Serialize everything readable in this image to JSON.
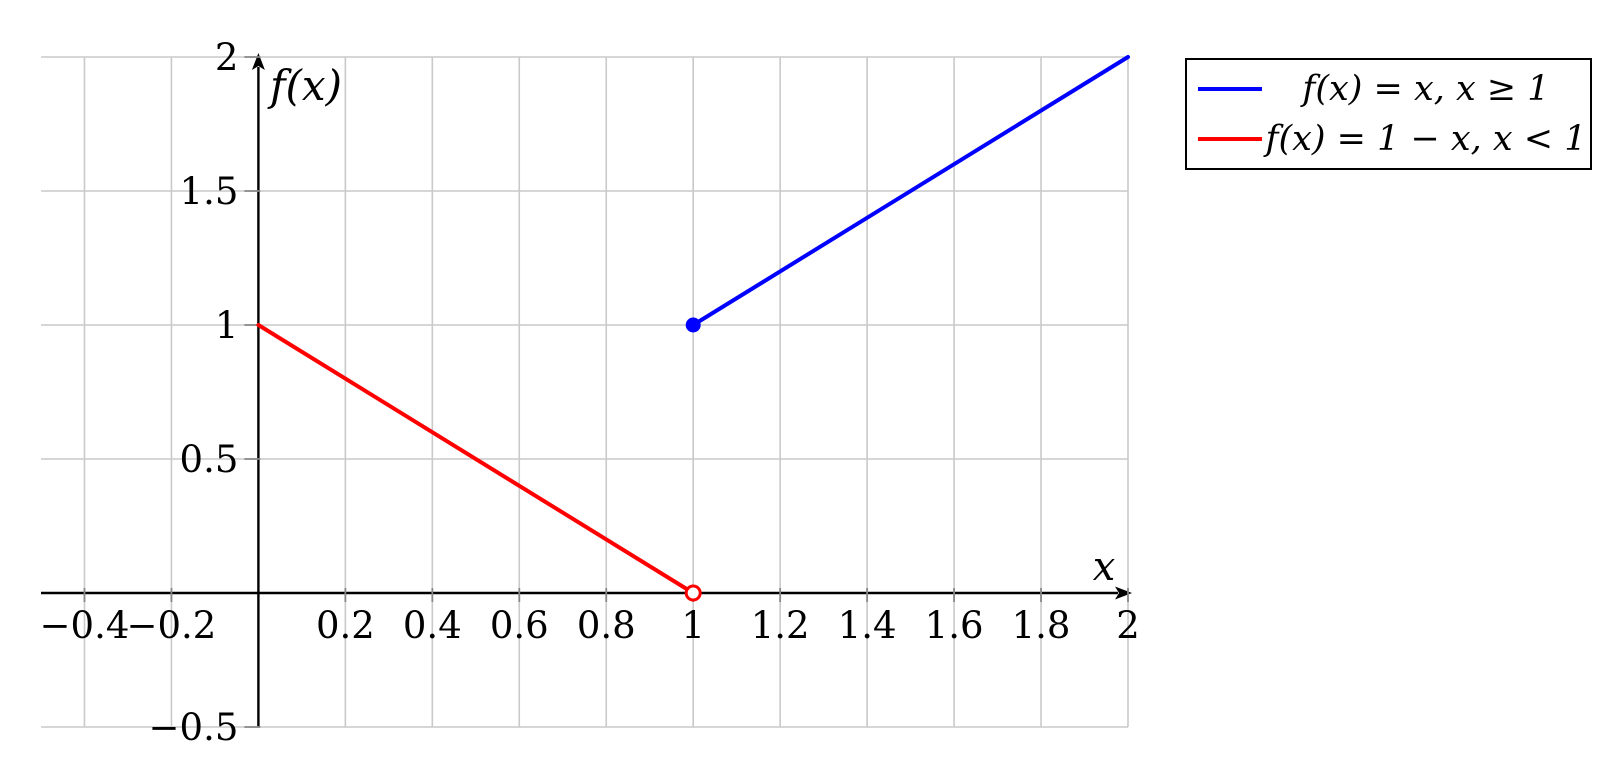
{
  "figure": {
    "background": "#ffffff"
  },
  "chart_data": {
    "type": "line",
    "title": "",
    "xlabel": "x",
    "ylabel": "f(x)",
    "xlim": [
      -0.5,
      2.0
    ],
    "ylim": [
      -0.5,
      2.0
    ],
    "grid": true,
    "legend_position": "outside-top-right",
    "x_ticks": {
      "values": [
        -0.4,
        -0.2,
        0.2,
        0.4,
        0.6,
        0.8,
        1,
        1.2,
        1.4,
        1.6,
        1.8,
        2
      ],
      "labels": [
        "−0.4",
        "−0.2",
        "0.2",
        "0.4",
        "0.6",
        "0.8",
        "1",
        "1.2",
        "1.4",
        "1.6",
        "1.8",
        "2"
      ]
    },
    "y_ticks": {
      "values": [
        -0.5,
        0.5,
        1,
        1.5,
        2
      ],
      "labels": [
        "−0.5",
        "0.5",
        "1",
        "1.5",
        "2"
      ]
    },
    "series": [
      {
        "name": "f(x) = x, x ≥ 1",
        "color": "#0000ff",
        "points": [
          [
            1,
            1
          ],
          [
            2,
            2
          ]
        ],
        "marker": {
          "at": [
            1,
            1
          ],
          "type": "filled"
        }
      },
      {
        "name": "f(x) = 1 − x, x < 1",
        "color": "#ff0000",
        "points": [
          [
            0,
            1
          ],
          [
            1,
            0
          ]
        ],
        "marker": {
          "at": [
            1,
            0
          ],
          "type": "open"
        }
      }
    ]
  },
  "legend": {
    "entries": [
      {
        "label": "f(x) = x, x ≥ 1",
        "color": "#0000ff"
      },
      {
        "label": "f(x) = 1 − x, x < 1",
        "color": "#ff0000"
      }
    ]
  },
  "style": {
    "background": "#ffffff",
    "grid_color": "#c9c9c9",
    "axis_color": "#000000",
    "tick_color": "#888888",
    "series_line_width": 4,
    "blue": "#0000ff",
    "red": "#ff0000"
  }
}
